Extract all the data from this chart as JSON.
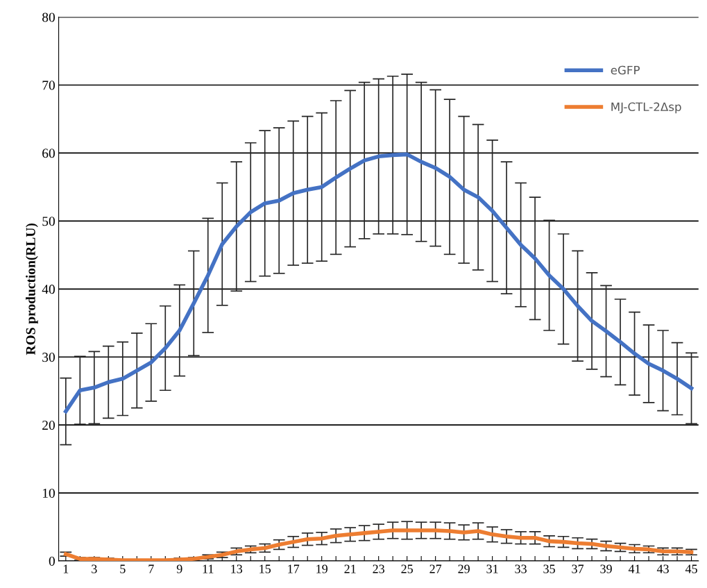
{
  "chart_data": {
    "type": "line",
    "ylabel": "ROS production(RLU)",
    "categories": [
      "1",
      null,
      "3",
      null,
      "5",
      null,
      "7",
      null,
      "9",
      null,
      "11",
      null,
      "13",
      null,
      "15",
      null,
      "17",
      null,
      "19",
      null,
      "21",
      null,
      "23",
      null,
      "25",
      null,
      "27",
      null,
      "29",
      null,
      "31",
      null,
      "33",
      null,
      "35",
      null,
      "37",
      null,
      "39",
      null,
      "41",
      null,
      "43",
      null,
      "45"
    ],
    "series": [
      {
        "name": "eGFP",
        "color": "#4472c4",
        "values": [
          22,
          25.1,
          25.5,
          26.3,
          26.8,
          28,
          29.2,
          31.3,
          33.9,
          37.9,
          42,
          46.6,
          49.2,
          51.3,
          52.6,
          53,
          54.1,
          54.6,
          55,
          56.4,
          57.7,
          58.9,
          59.5,
          59.7,
          59.8,
          58.7,
          57.8,
          56.5,
          54.6,
          53.5,
          51.5,
          49,
          46.5,
          44.5,
          42,
          40,
          37.5,
          35.3,
          33.8,
          32.2,
          30.5,
          29,
          28,
          26.8,
          25.4
        ],
        "errors": [
          4.9,
          5,
          5.3,
          5.3,
          5.4,
          5.5,
          5.7,
          6.2,
          6.7,
          7.7,
          8.4,
          9,
          9.5,
          10.2,
          10.7,
          10.7,
          10.6,
          10.8,
          10.9,
          11.3,
          11.5,
          11.5,
          11.4,
          11.6,
          11.8,
          11.7,
          11.5,
          11.4,
          10.8,
          10.7,
          10.4,
          9.7,
          9.1,
          9,
          8.1,
          8.1,
          8.1,
          7.1,
          6.7,
          6.3,
          6.1,
          5.7,
          5.9,
          5.3,
          5.2
        ]
      },
      {
        "name": "MJ-CTL-2Δsp",
        "color": "#ed7d31",
        "values": [
          1,
          0.3,
          0.3,
          0.2,
          0.1,
          0.1,
          0.1,
          0.1,
          0.2,
          0.3,
          0.6,
          0.9,
          1.4,
          1.7,
          1.9,
          2.4,
          2.8,
          3.2,
          3.3,
          3.7,
          3.9,
          4.1,
          4.3,
          4.5,
          4.5,
          4.5,
          4.5,
          4.4,
          4.2,
          4.4,
          3.9,
          3.6,
          3.4,
          3.4,
          2.9,
          2.8,
          2.6,
          2.5,
          2.2,
          2,
          1.8,
          1.7,
          1.4,
          1.4,
          1.3
        ],
        "errors": [
          0.3,
          0.2,
          0.2,
          0.2,
          0.1,
          0.1,
          0.1,
          0.1,
          0.2,
          0.2,
          0.3,
          0.4,
          0.5,
          0.5,
          0.6,
          0.7,
          0.8,
          0.9,
          0.9,
          1,
          1,
          1.1,
          1.1,
          1.2,
          1.3,
          1.2,
          1.2,
          1.2,
          1.1,
          1.2,
          1.1,
          1,
          0.9,
          0.9,
          0.8,
          0.8,
          0.8,
          0.7,
          0.7,
          0.6,
          0.6,
          0.5,
          0.5,
          0.5,
          0.4
        ]
      }
    ],
    "ylim": [
      0,
      80
    ],
    "yticks": [
      0,
      10,
      20,
      30,
      40,
      50,
      60,
      70,
      80
    ],
    "grid": "y",
    "legend": "top right",
    "marker": "none",
    "line_style": "solid"
  }
}
